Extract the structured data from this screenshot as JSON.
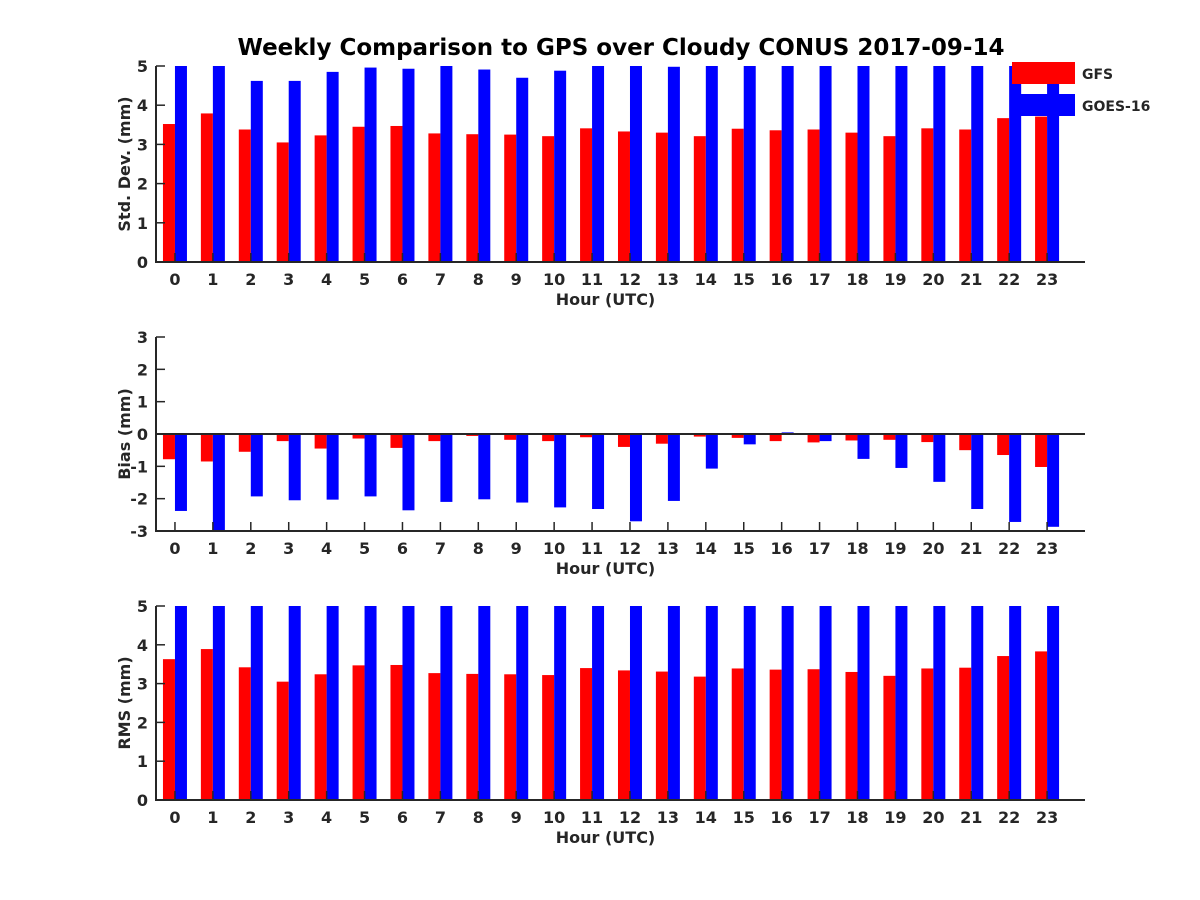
{
  "chart_data": {
    "title": "Weekly Comparison to GPS over Cloudy CONUS 2017-09-14",
    "type": "bar",
    "legend": {
      "placement": "top-right (outside)",
      "entries": [
        "GFS",
        "GOES-16"
      ]
    },
    "colors": {
      "GFS": "#ff0000",
      "GOES-16": "#0000ff"
    },
    "categories": [
      "0",
      "1",
      "2",
      "3",
      "4",
      "5",
      "6",
      "7",
      "8",
      "9",
      "10",
      "11",
      "12",
      "13",
      "14",
      "15",
      "16",
      "17",
      "18",
      "19",
      "20",
      "21",
      "22",
      "23"
    ],
    "panels": [
      {
        "type": "bar",
        "xlabel": "Hour (UTC)",
        "ylabel": "Std. Dev. (mm)",
        "ylim": [
          0,
          5
        ],
        "yticks": [
          "0",
          "1",
          "2",
          "3",
          "4",
          "5"
        ],
        "grid": false,
        "series": [
          {
            "name": "GFS",
            "values": [
              3.52,
              3.79,
              3.38,
              3.05,
              3.23,
              3.45,
              3.47,
              3.28,
              3.26,
              3.25,
              3.21,
              3.41,
              3.33,
              3.3,
              3.21,
              3.4,
              3.36,
              3.38,
              3.3,
              3.21,
              3.41,
              3.38,
              3.67,
              3.71
            ]
          },
          {
            "name": "GOES-16",
            "values": [
              5.0,
              5.0,
              4.62,
              4.62,
              4.85,
              4.96,
              4.93,
              5.0,
              4.91,
              4.7,
              4.88,
              5.0,
              5.0,
              4.98,
              5.0,
              5.0,
              5.0,
              5.0,
              5.0,
              5.0,
              5.0,
              5.0,
              5.0,
              5.0
            ]
          }
        ]
      },
      {
        "type": "bar",
        "xlabel": "Hour (UTC)",
        "ylabel": "Bias (mm)",
        "ylim": [
          -3,
          3
        ],
        "yticks": [
          "-3",
          "-2",
          "-1",
          "0",
          "1",
          "2",
          "3"
        ],
        "grid": false,
        "series": [
          {
            "name": "GFS",
            "values": [
              -0.78,
              -0.85,
              -0.55,
              -0.22,
              -0.45,
              -0.14,
              -0.43,
              -0.22,
              -0.06,
              -0.18,
              -0.22,
              -0.1,
              -0.4,
              -0.3,
              -0.08,
              -0.12,
              -0.22,
              -0.26,
              -0.2,
              -0.18,
              -0.25,
              -0.5,
              -0.65,
              -1.02
            ]
          },
          {
            "name": "GOES-16",
            "values": [
              -2.38,
              -3.0,
              -1.93,
              -2.05,
              -2.03,
              -1.93,
              -2.36,
              -2.1,
              -2.02,
              -2.12,
              -2.27,
              -2.32,
              -2.7,
              -2.07,
              -1.07,
              -0.32,
              0.05,
              -0.22,
              -0.77,
              -1.05,
              -1.48,
              -2.32,
              -2.72,
              -2.87
            ]
          }
        ]
      },
      {
        "type": "bar",
        "xlabel": "Hour (UTC)",
        "ylabel": "RMS (mm)",
        "ylim": [
          0,
          5
        ],
        "yticks": [
          "0",
          "1",
          "2",
          "3",
          "4",
          "5"
        ],
        "grid": false,
        "series": [
          {
            "name": "GFS",
            "values": [
              3.63,
              3.89,
              3.42,
              3.05,
              3.24,
              3.47,
              3.48,
              3.27,
              3.25,
              3.24,
              3.22,
              3.4,
              3.34,
              3.31,
              3.18,
              3.39,
              3.36,
              3.37,
              3.3,
              3.2,
              3.39,
              3.41,
              3.71,
              3.83
            ]
          },
          {
            "name": "GOES-16",
            "values": [
              5.0,
              5.0,
              5.0,
              5.0,
              5.0,
              5.0,
              5.0,
              5.0,
              5.0,
              5.0,
              5.0,
              5.0,
              5.0,
              5.0,
              5.0,
              5.0,
              5.0,
              5.0,
              5.0,
              5.0,
              5.0,
              5.0,
              5.0,
              5.0
            ]
          }
        ]
      }
    ]
  }
}
